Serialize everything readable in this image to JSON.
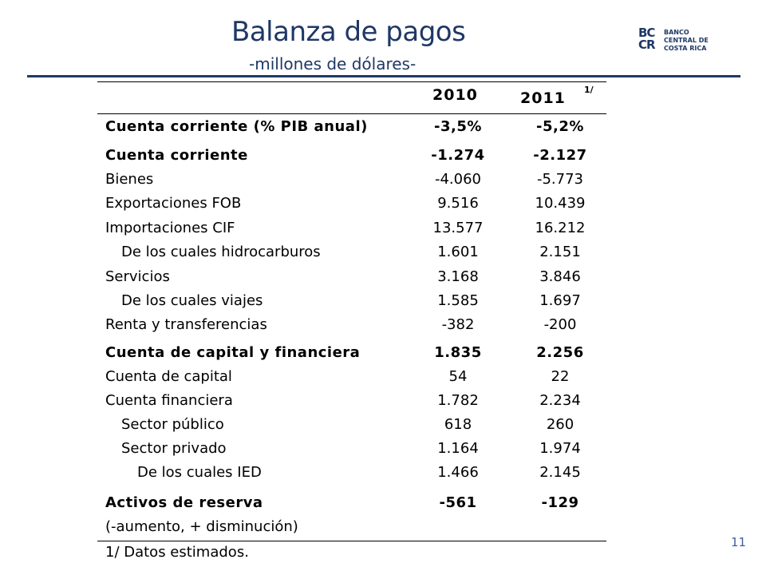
{
  "slide": {
    "title": "Balanza de pagos",
    "subtitle": "-millones de dólares-",
    "page_number": "11",
    "accent_color": "#1f3864"
  },
  "logo": {
    "mark_line1": "BC",
    "mark_line2": "CR",
    "bank_line1": "BANCO",
    "bank_line2": "CENTRAL DE",
    "bank_line3": "COSTA RICA"
  },
  "table": {
    "headers": {
      "y2010": "2010",
      "y2011": "2011",
      "y2011_note": "1/"
    },
    "rows": [
      {
        "label": "Cuenta corriente (% PIB anual)",
        "v2010": "-3,5%",
        "v2011": "-5,2%"
      },
      {
        "label": "Cuenta corriente",
        "v2010": "-1.274",
        "v2011": "-2.127"
      },
      {
        "label": "Bienes",
        "v2010": "-4.060",
        "v2011": "-5.773"
      },
      {
        "label": "Exportaciones FOB",
        "v2010": "9.516",
        "v2011": "10.439"
      },
      {
        "label": "Importaciones CIF",
        "v2010": "13.577",
        "v2011": "16.212"
      },
      {
        "label": "De los cuales hidrocarburos",
        "v2010": "1.601",
        "v2011": "2.151"
      },
      {
        "label": "Servicios",
        "v2010": "3.168",
        "v2011": "3.846"
      },
      {
        "label": "De los cuales viajes",
        "v2010": "1.585",
        "v2011": "1.697"
      },
      {
        "label": "Renta y transferencias",
        "v2010": "-382",
        "v2011": "-200"
      },
      {
        "label": "Cuenta de capital y financiera",
        "v2010": "1.835",
        "v2011": "2.256"
      },
      {
        "label": "Cuenta de capital",
        "v2010": "54",
        "v2011": "22"
      },
      {
        "label": "Cuenta financiera",
        "v2010": "1.782",
        "v2011": "2.234"
      },
      {
        "label": "Sector público",
        "v2010": "618",
        "v2011": "260"
      },
      {
        "label": "Sector privado",
        "v2010": "1.164",
        "v2011": "1.974"
      },
      {
        "label": "De los cuales IED",
        "v2010": "1.466",
        "v2011": "2.145"
      },
      {
        "label": "Activos de reserva",
        "v2010": "-561",
        "v2011": "-129"
      },
      {
        "label": "(-aumento, + disminución)",
        "v2010": "",
        "v2011": ""
      }
    ],
    "footnote": "1/ Datos estimados."
  }
}
